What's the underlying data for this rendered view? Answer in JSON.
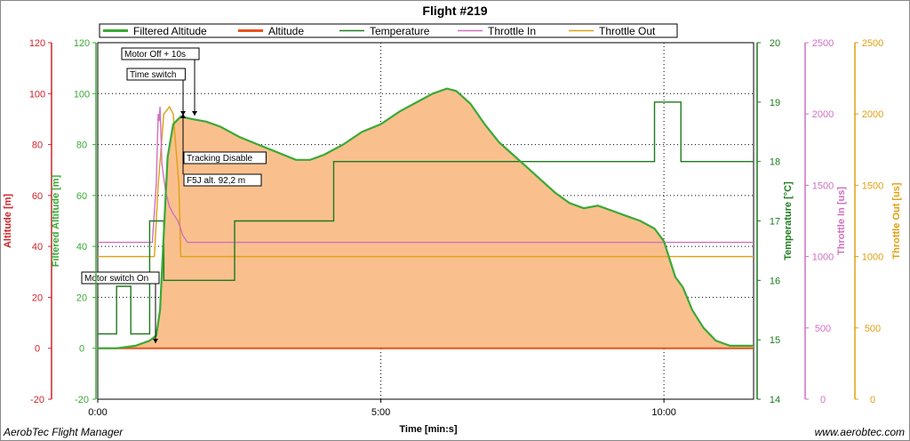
{
  "chart_data": {
    "type": "line",
    "title": "Flight #219",
    "xlabel": "Time [min:s]",
    "x_ticks": [
      "0:00",
      "5:00",
      "10:00"
    ],
    "x_tick_seconds": [
      0,
      300,
      600
    ],
    "xlim": [
      0,
      695
    ],
    "footer_left": "AerobTec Flight Manager",
    "footer_right": "www.aerobtec.com",
    "axes": [
      {
        "id": "alt",
        "label": "Altitude [m]",
        "color": "#d0242b",
        "range": [
          -20,
          120
        ],
        "ticks": [
          "-20",
          "0",
          "20",
          "40",
          "60",
          "80",
          "100",
          "120"
        ]
      },
      {
        "id": "falt",
        "label": "Filtered Altitude [m]",
        "color": "#3aa935",
        "range": [
          -20,
          120
        ],
        "ticks": [
          "-20",
          "0",
          "20",
          "40",
          "60",
          "80",
          "100",
          "120"
        ]
      },
      {
        "id": "temp",
        "label": "Temperature [°C]",
        "color": "#1e7a1e",
        "range": [
          14,
          20
        ],
        "ticks": [
          "14",
          "15",
          "16",
          "17",
          "18",
          "19",
          "20"
        ]
      },
      {
        "id": "thin",
        "label": "Throttle In [us]",
        "color": "#d070c0",
        "range": [
          0,
          2500
        ],
        "ticks": [
          "0",
          "500",
          "1000",
          "1500",
          "2000",
          "2500"
        ]
      },
      {
        "id": "thout",
        "label": "Throttle Out [us]",
        "color": "#e0a010",
        "range": [
          0,
          2500
        ],
        "ticks": [
          "0",
          "500",
          "1000",
          "1500",
          "2000",
          "2500"
        ]
      }
    ],
    "legend": {
      "position": "top",
      "entries": [
        {
          "name": "Filtered Altitude",
          "color": "#3aa935"
        },
        {
          "name": "Altitude",
          "color": "#e8531c"
        },
        {
          "name": "Temperature",
          "color": "#1e7a1e"
        },
        {
          "name": "Throttle In",
          "color": "#d070c0"
        },
        {
          "name": "Throttle Out",
          "color": "#e0a010"
        }
      ]
    },
    "series": [
      {
        "name": "Filtered Altitude",
        "axis": "falt",
        "color": "#3aa935",
        "fill": "#f9c08e",
        "points": [
          [
            0,
            0
          ],
          [
            20,
            0
          ],
          [
            40,
            1
          ],
          [
            55,
            3
          ],
          [
            62,
            5
          ],
          [
            66,
            15
          ],
          [
            70,
            45
          ],
          [
            74,
            75
          ],
          [
            80,
            88
          ],
          [
            88,
            91
          ],
          [
            100,
            90
          ],
          [
            115,
            89
          ],
          [
            130,
            87
          ],
          [
            150,
            83
          ],
          [
            170,
            80
          ],
          [
            190,
            77
          ],
          [
            210,
            74
          ],
          [
            225,
            74
          ],
          [
            240,
            76
          ],
          [
            260,
            80
          ],
          [
            280,
            85
          ],
          [
            300,
            88
          ],
          [
            320,
            93
          ],
          [
            340,
            97
          ],
          [
            355,
            100
          ],
          [
            370,
            102
          ],
          [
            380,
            101
          ],
          [
            395,
            96
          ],
          [
            410,
            88
          ],
          [
            425,
            81
          ],
          [
            440,
            76
          ],
          [
            455,
            71
          ],
          [
            470,
            66
          ],
          [
            485,
            61
          ],
          [
            500,
            57
          ],
          [
            515,
            55
          ],
          [
            530,
            56
          ],
          [
            545,
            54
          ],
          [
            560,
            52
          ],
          [
            575,
            50
          ],
          [
            590,
            47
          ],
          [
            600,
            42
          ],
          [
            606,
            35
          ],
          [
            612,
            28
          ],
          [
            620,
            24
          ],
          [
            630,
            15
          ],
          [
            642,
            8
          ],
          [
            655,
            3
          ],
          [
            670,
            1
          ],
          [
            685,
            1
          ],
          [
            695,
            1
          ]
        ]
      },
      {
        "name": "Altitude",
        "axis": "alt",
        "color": "#e8531c",
        "points": [
          [
            0,
            0
          ],
          [
            695,
            0
          ]
        ]
      },
      {
        "name": "Temperature",
        "axis": "temp",
        "color": "#1e7a1e",
        "points": [
          [
            0,
            15.1
          ],
          [
            20,
            15.1
          ],
          [
            20,
            15.9
          ],
          [
            35,
            15.9
          ],
          [
            35,
            15.1
          ],
          [
            55,
            15.1
          ],
          [
            55,
            17
          ],
          [
            70,
            17
          ],
          [
            70,
            16
          ],
          [
            145,
            16
          ],
          [
            145,
            17
          ],
          [
            250,
            17
          ],
          [
            250,
            18
          ],
          [
            590,
            18
          ],
          [
            590,
            19
          ],
          [
            618,
            19
          ],
          [
            618,
            18
          ],
          [
            695,
            18
          ]
        ]
      },
      {
        "name": "Throttle In",
        "axis": "thin",
        "color": "#d070c0",
        "points": [
          [
            0,
            1100
          ],
          [
            58,
            1100
          ],
          [
            58,
            1120
          ],
          [
            62,
            1500
          ],
          [
            64,
            2000
          ],
          [
            65,
            1950
          ],
          [
            66,
            2050
          ],
          [
            68,
            1650
          ],
          [
            72,
            1450
          ],
          [
            76,
            1350
          ],
          [
            80,
            1300
          ],
          [
            85,
            1250
          ],
          [
            90,
            1150
          ],
          [
            95,
            1100
          ],
          [
            695,
            1100
          ]
        ]
      },
      {
        "name": "Throttle Out",
        "axis": "thout",
        "color": "#e0a010",
        "points": [
          [
            0,
            1000
          ],
          [
            60,
            1000
          ],
          [
            64,
            1500
          ],
          [
            70,
            2000
          ],
          [
            76,
            2050
          ],
          [
            80,
            2000
          ],
          [
            86,
            1500
          ],
          [
            88,
            1000
          ],
          [
            695,
            1000
          ]
        ]
      }
    ],
    "annotations": [
      {
        "text": "Motor switch On",
        "t": 60,
        "y": 1
      },
      {
        "text": "Time switch",
        "t": 87,
        "y": 88
      },
      {
        "text": "Motor Off + 10s",
        "t": 97,
        "y": 90
      },
      {
        "text": "Tracking Disable",
        "t": 89,
        "y": 90
      },
      {
        "text": "F5J alt. 92,2 m",
        "t": 89,
        "y": 92
      }
    ],
    "grid": "dotted"
  }
}
